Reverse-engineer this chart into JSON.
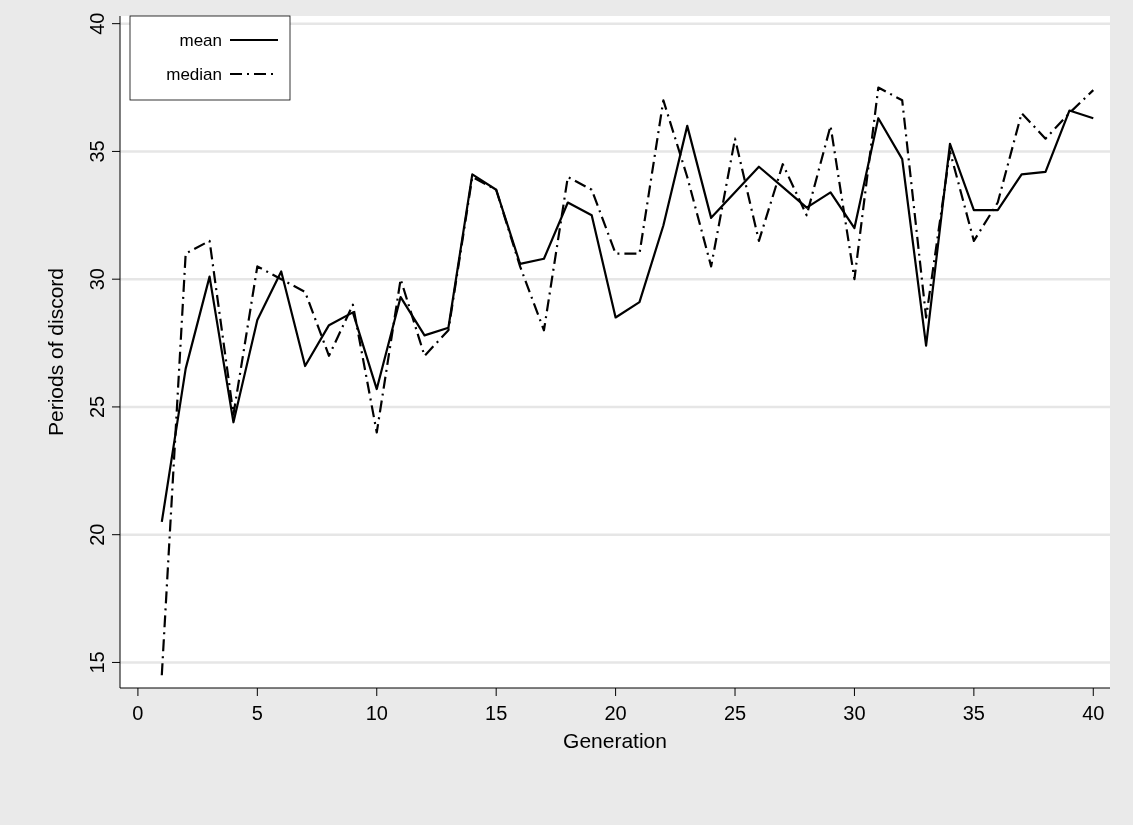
{
  "chart_data": {
    "type": "line",
    "xlabel": "Generation",
    "ylabel": "Periods of discord",
    "x": [
      1,
      2,
      3,
      4,
      5,
      6,
      7,
      8,
      9,
      10,
      11,
      12,
      13,
      14,
      15,
      16,
      17,
      18,
      19,
      20,
      21,
      22,
      23,
      24,
      25,
      26,
      27,
      28,
      29,
      30,
      31,
      32,
      33,
      34,
      35,
      36,
      37,
      38,
      39,
      40
    ],
    "series": [
      {
        "name": "mean",
        "color": "#000000",
        "line_style": "solid",
        "values": [
          20.5,
          26.5,
          30.1,
          24.4,
          28.4,
          30.3,
          26.6,
          28.2,
          28.7,
          25.7,
          29.3,
          27.8,
          28.1,
          34.1,
          33.5,
          30.6,
          30.8,
          33.0,
          32.5,
          28.5,
          29.1,
          32.1,
          36.0,
          32.4,
          33.4,
          34.4,
          33.6,
          32.8,
          33.4,
          32.0,
          36.3,
          34.7,
          27.4,
          35.3,
          32.7,
          32.7,
          34.1,
          34.2,
          36.6,
          36.3
        ]
      },
      {
        "name": "median",
        "color": "#000000",
        "line_style": "dashed",
        "values": [
          14.5,
          31,
          31.5,
          24.7,
          30.5,
          30,
          29.5,
          27,
          29,
          24,
          30,
          27,
          28,
          34,
          33.5,
          30.5,
          28,
          34,
          33.5,
          31,
          31,
          37,
          34,
          30.5,
          35.5,
          31.5,
          34.5,
          32.5,
          36,
          30,
          37.5,
          37,
          28.5,
          35,
          31.5,
          33,
          36.5,
          35.5,
          36.5,
          37.4
        ]
      }
    ],
    "xlim": [
      -0.75,
      40.7
    ],
    "ylim": [
      14,
      40.3
    ],
    "xticks": [
      0,
      5,
      10,
      15,
      20,
      25,
      30,
      35,
      40
    ],
    "yticks": [
      15,
      20,
      25,
      30,
      35,
      40
    ],
    "grid": "y",
    "legend": "top left",
    "marker": "none"
  }
}
